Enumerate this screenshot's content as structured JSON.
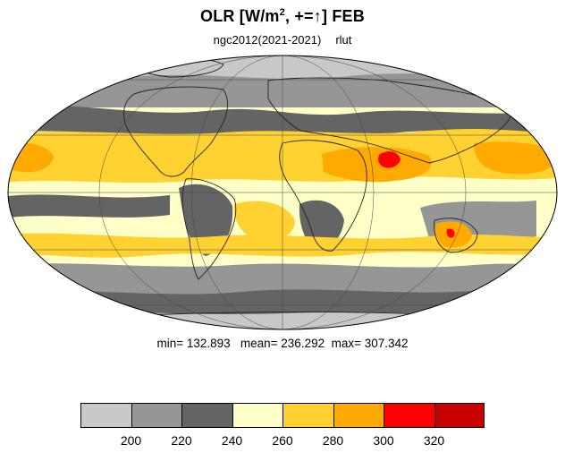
{
  "title": {
    "text": "OLR [W/m",
    "sup": "2",
    "rest": ", +=",
    "arrow": "↑",
    "month": "] FEB"
  },
  "subtitle": {
    "run": "ngc2012(2021-2021)",
    "variable": "rlut"
  },
  "stats": {
    "text": "min= 132.893   mean= 236.292  max= 307.342"
  },
  "colorbar": {
    "colors": [
      "#c8c8c8",
      "#969696",
      "#646464",
      "#ffffc8",
      "#ffd232",
      "#ffaa00",
      "#ff0000",
      "#c80000"
    ],
    "labels": [
      "200",
      "220",
      "240",
      "260",
      "280",
      "300",
      "320"
    ]
  },
  "map": {
    "projection": "Mollweide",
    "ocean_fill": "#ffffc8",
    "coastline_color": "#222222"
  }
}
